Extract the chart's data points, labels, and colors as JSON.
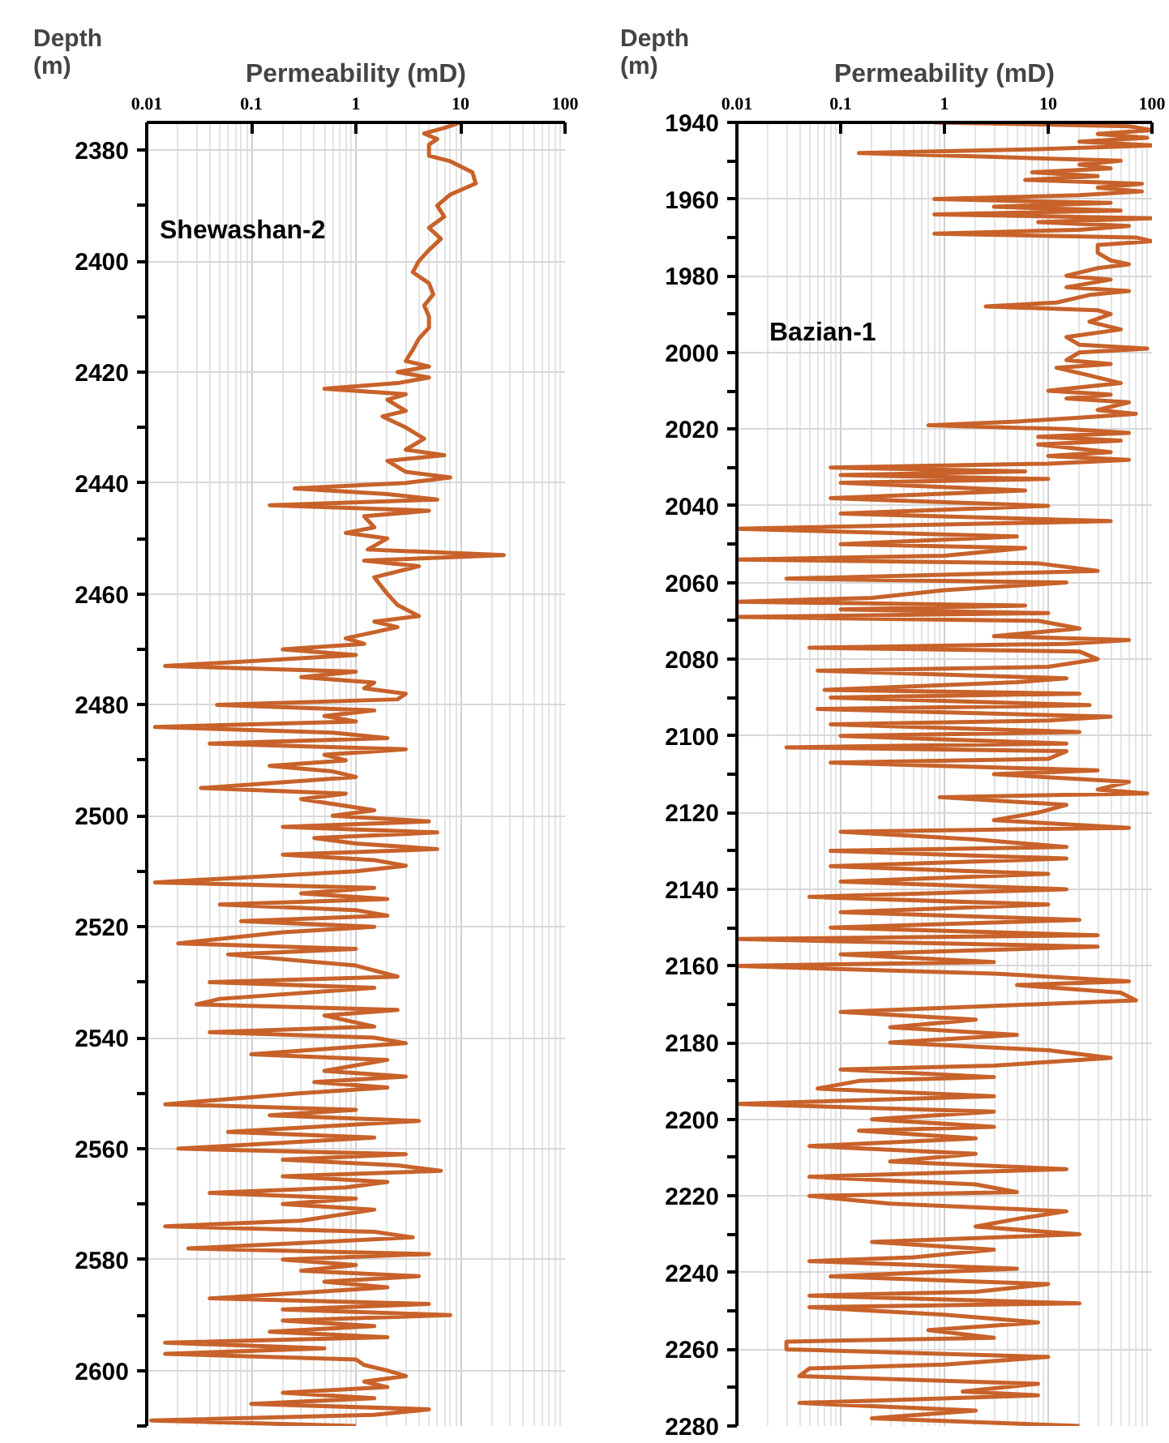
{
  "chart_data": [
    {
      "type": "line",
      "xlabel": "Permeability (mD)",
      "ylabel": "Depth (m)",
      "log": "x",
      "grid": true,
      "xlim": [
        0.01,
        100
      ],
      "xticks": [
        0.01,
        0.1,
        1,
        10,
        100
      ],
      "ylim": [
        2610,
        2375
      ],
      "yticks": [
        2380,
        {
          "value": 2390,
          "label": null
        },
        2400,
        {
          "value": 2410,
          "label": null
        },
        2420,
        {
          "value": 2430,
          "label": null
        },
        2440,
        {
          "value": 2450,
          "label": null
        },
        2460,
        {
          "value": 2470,
          "label": null
        },
        2480,
        {
          "value": 2490,
          "label": null
        },
        2500,
        {
          "value": 2510,
          "label": null
        },
        2520,
        {
          "value": 2530,
          "label": null
        },
        2540,
        {
          "value": 2550,
          "label": null
        },
        2560,
        {
          "value": 2570,
          "label": null
        },
        2580,
        {
          "value": 2590,
          "label": null
        },
        2600,
        {
          "value": 2610,
          "label": null
        }
      ],
      "series": [
        {
          "name": "Shewashan-2",
          "color": "#c8622a",
          "x": [
            10,
            7,
            4.5,
            6,
            5,
            5,
            8,
            13,
            14,
            8,
            6,
            7,
            5,
            6.5,
            5,
            4,
            3.5,
            5,
            5.5,
            4.5,
            5,
            5,
            4,
            3.5,
            3,
            5,
            2.5,
            5,
            2.5,
            0.5,
            3,
            2,
            3,
            1.8,
            3,
            4.5,
            3,
            7,
            2,
            3,
            8,
            3,
            0.26,
            2,
            6,
            0.15,
            5,
            1.2,
            1.5,
            0.8,
            2,
            1.3,
            26,
            1.2,
            4,
            1.5,
            2,
            2.5,
            4,
            1.5,
            2.5,
            0.8,
            1.2,
            0.2,
            1,
            0.015,
            1,
            0.3,
            1.5,
            1.2,
            3,
            2.5,
            0.047,
            1.5,
            0.5,
            1,
            0.012,
            0.6,
            2,
            0.04,
            3,
            0.5,
            0.8,
            0.15,
            0.6,
            1,
            0.033,
            0.8,
            0.3,
            1.5,
            0.6,
            5,
            0.2,
            6,
            0.4,
            1,
            6,
            0.2,
            1.5,
            3,
            1,
            0.012,
            1.5,
            0.3,
            2,
            0.05,
            1,
            2,
            0.08,
            1.5,
            0.2,
            0.02,
            1,
            0.06,
            1,
            2.5,
            0.04,
            1.5,
            0.05,
            0.03,
            2.5,
            0.5,
            1.5,
            0.04,
            1.5,
            3,
            0.1,
            2,
            0.5,
            3,
            0.4,
            2,
            0.3,
            0.015,
            1,
            0.15,
            4,
            0.06,
            1.5,
            0.02,
            3,
            0.2,
            2.5,
            6.5,
            0.2,
            2,
            0.8,
            0.04,
            1,
            0.2,
            1.5,
            0.3,
            0.015,
            1.5,
            3.5,
            0.3,
            0.025,
            5,
            0.2,
            1,
            0.3,
            4,
            0.5,
            2,
            0.3,
            0.04,
            5,
            0.2,
            8,
            0.2,
            1.5,
            0.15,
            2,
            0.015,
            0.5,
            0.015,
            1,
            1.2,
            2,
            3,
            1.2,
            2,
            0.2,
            1.5,
            0.1,
            5,
            1.5,
            0.011,
            1
          ],
          "values": [
            2375,
            2376,
            2377,
            2378,
            2379,
            2381,
            2382,
            2384,
            2386,
            2388,
            2390,
            2392,
            2394,
            2396,
            2398,
            2400,
            2402,
            2404,
            2406,
            2408,
            2410,
            2412,
            2414,
            2416,
            2418,
            2419,
            2420,
            2421,
            2422,
            2423,
            2424,
            2425,
            2427,
            2428,
            2430,
            2432,
            2434,
            2435,
            2436,
            2438,
            2439,
            2440,
            2441,
            2442,
            2443,
            2444,
            2445,
            2446,
            2448,
            2449,
            2450,
            2452,
            2453,
            2454,
            2455,
            2457,
            2460,
            2462,
            2464,
            2465,
            2466,
            2468,
            2469,
            2470,
            2471,
            2473,
            2474,
            2475,
            2476,
            2477,
            2478,
            2479,
            2480,
            2481,
            2482,
            2483,
            2484,
            2485,
            2486,
            2487,
            2488,
            2489,
            2490,
            2491,
            2492,
            2493,
            2495,
            2496,
            2497,
            2499,
            2500,
            2501,
            2502,
            2503,
            2504,
            2505,
            2506,
            2507,
            2508,
            2509,
            2510,
            2512,
            2513,
            2514,
            2515,
            2516,
            2517,
            2518,
            2519,
            2520,
            2521,
            2523,
            2524,
            2525,
            2527,
            2529,
            2530,
            2531,
            2533,
            2534,
            2535,
            2536,
            2538,
            2539,
            2540,
            2541,
            2543,
            2544,
            2546,
            2547,
            2548,
            2549,
            2550,
            2552,
            2553,
            2554,
            2555,
            2557,
            2558,
            2560,
            2561,
            2562,
            2563,
            2564,
            2565,
            2566,
            2567,
            2568,
            2569,
            2570,
            2571,
            2573,
            2574,
            2575,
            2576,
            2577,
            2578,
            2579,
            2580,
            2581,
            2582,
            2583,
            2584,
            2585,
            2586,
            2587,
            2588,
            2589,
            2590,
            2591,
            2592,
            2593,
            2594,
            2595,
            2596,
            2597,
            2598,
            2599,
            2600,
            2601,
            2602,
            2603,
            2604,
            2605,
            2606,
            2607,
            2608,
            2609,
            2610
          ]
        }
      ]
    },
    {
      "type": "line",
      "xlabel": "Permeability (mD)",
      "ylabel": "Depth (m)",
      "log": "x",
      "grid": true,
      "xlim": [
        0.01,
        100
      ],
      "xticks": [
        0.01,
        0.1,
        1,
        10,
        100
      ],
      "ylim": [
        2280,
        1940
      ],
      "yticks": [
        1940,
        {
          "value": 1950,
          "label": null
        },
        1960,
        {
          "value": 1970,
          "label": null
        },
        1980,
        {
          "value": 1990,
          "label": null
        },
        2000,
        {
          "value": 2010,
          "label": null
        },
        2020,
        {
          "value": 2030,
          "label": null
        },
        2040,
        {
          "value": 2050,
          "label": null
        },
        2060,
        {
          "value": 2070,
          "label": null
        },
        2080,
        {
          "value": 2090,
          "label": null
        },
        2100,
        {
          "value": 2110,
          "label": null
        },
        2120,
        {
          "value": 2130,
          "label": null
        },
        2140,
        {
          "value": 2150,
          "label": null
        },
        2160,
        {
          "value": 2170,
          "label": null
        },
        2180,
        {
          "value": 2190,
          "label": null
        },
        2200,
        {
          "value": 2210,
          "label": null
        },
        2220,
        {
          "value": 2230,
          "label": null
        },
        2240,
        {
          "value": 2250,
          "label": null
        },
        2260,
        {
          "value": 2270,
          "label": null
        },
        2280
      ],
      "series": [
        {
          "name": "Bazian-1",
          "color": "#c8622a",
          "x": [
            0.8,
            60,
            100,
            30,
            90,
            20,
            100,
            8,
            0.15,
            3,
            50,
            20,
            40,
            7,
            30,
            6,
            80,
            30,
            80,
            20,
            0.8,
            40,
            3,
            50,
            0.8,
            100,
            8,
            60,
            20,
            0.8,
            70,
            100,
            30,
            30,
            40,
            60,
            30,
            15,
            40,
            15,
            60,
            25,
            12,
            2.5,
            30,
            40,
            25,
            50,
            15,
            20,
            90,
            20,
            15,
            40,
            12,
            25,
            50,
            10,
            40,
            15,
            60,
            30,
            70,
            20,
            5,
            0.7,
            15,
            60,
            8,
            50,
            8,
            40,
            10,
            60,
            10,
            0.08,
            6,
            0.1,
            10,
            0.1,
            6,
            0.08,
            10,
            0.1,
            40,
            0.01,
            5,
            0.1,
            6,
            1,
            0.01,
            8,
            30,
            0.03,
            15,
            1,
            0.2,
            0.01,
            6,
            0.1,
            10,
            0.01,
            8,
            20,
            3,
            60,
            15,
            0.05,
            20,
            30,
            10,
            0.06,
            15,
            5,
            0.07,
            20,
            0.08,
            25,
            0.06,
            40,
            10,
            0.08,
            20,
            0.1,
            15,
            0.03,
            15,
            10,
            0.08,
            30,
            3,
            60,
            30,
            90,
            0.9,
            15,
            8,
            3,
            60,
            0.1,
            2,
            15,
            0.08,
            15,
            0.08,
            10,
            0.1,
            15,
            0.05,
            10,
            0.1,
            20,
            0.08,
            30,
            0.01,
            30,
            0.1,
            3,
            0.01,
            3,
            60,
            5,
            50,
            70,
            8,
            0.1,
            2,
            0.3,
            5,
            0.3,
            10,
            40,
            3,
            0.1,
            3,
            0.15,
            0.06,
            3,
            0.01,
            3,
            0.2,
            3,
            0.15,
            2,
            0.05,
            2,
            0.3,
            15,
            0.05,
            2,
            5,
            0.05,
            0.3,
            15,
            5,
            2,
            20,
            0.2,
            3,
            0.5,
            0.05,
            5,
            0.08,
            10,
            2,
            0.05,
            20,
            0.05,
            1,
            8,
            0.7,
            3,
            0.03,
            0.03,
            10,
            1,
            0.05,
            0.04,
            8,
            1.5,
            8,
            0.04,
            2,
            0.2,
            20
          ],
          "values": [
            1940,
            1941,
            1942,
            1943,
            1944,
            1945,
            1946,
            1947,
            1948,
            1949,
            1950,
            1951,
            1952,
            1953,
            1954,
            1955,
            1956,
            1957,
            1958,
            1959,
            1960,
            1961,
            1962,
            1963,
            1964,
            1965,
            1966,
            1967,
            1968,
            1969,
            1970,
            1971,
            1972,
            1974,
            1976,
            1977,
            1978,
            1980,
            1981,
            1983,
            1984,
            1985,
            1987,
            1988,
            1989,
            1990,
            1992,
            1994,
            1996,
            1998,
            1999,
            2000,
            2002,
            2003,
            2004,
            2006,
            2008,
            2010,
            2011,
            2012,
            2013,
            2015,
            2016,
            2017,
            2018,
            2019,
            2020,
            2021,
            2022,
            2023,
            2024,
            2026,
            2027,
            2028,
            2029,
            2030,
            2031,
            2032,
            2033,
            2034,
            2036,
            2038,
            2040,
            2042,
            2044,
            2046,
            2048,
            2050,
            2051,
            2053,
            2054,
            2055,
            2057,
            2059,
            2060,
            2062,
            2064,
            2065,
            2066,
            2067,
            2068,
            2069,
            2070,
            2072,
            2074,
            2075,
            2076,
            2077,
            2078,
            2080,
            2082,
            2083,
            2085,
            2086,
            2088,
            2089,
            2090,
            2092,
            2093,
            2095,
            2096,
            2097,
            2099,
            2100,
            2102,
            2103,
            2104,
            2106,
            2107,
            2109,
            2110,
            2112,
            2114,
            2115,
            2116,
            2118,
            2120,
            2122,
            2124,
            2125,
            2127,
            2129,
            2130,
            2132,
            2134,
            2136,
            2138,
            2140,
            2142,
            2144,
            2146,
            2148,
            2150,
            2152,
            2153,
            2155,
            2157,
            2159,
            2160,
            2162,
            2164,
            2165,
            2167,
            2169,
            2170,
            2172,
            2174,
            2176,
            2178,
            2180,
            2182,
            2184,
            2186,
            2187,
            2189,
            2190,
            2192,
            2194,
            2196,
            2198,
            2200,
            2202,
            2203,
            2205,
            2207,
            2209,
            2211,
            2213,
            2215,
            2217,
            2219,
            2220,
            2222,
            2224,
            2226,
            2228,
            2230,
            2232,
            2234,
            2236,
            2237,
            2239,
            2241,
            2243,
            2245,
            2246,
            2248,
            2249,
            2251,
            2253,
            2255,
            2257,
            2258,
            2260,
            2262,
            2264,
            2265,
            2267,
            2269,
            2271,
            2272,
            2274,
            2276,
            2278,
            2280
          ]
        }
      ]
    }
  ]
}
